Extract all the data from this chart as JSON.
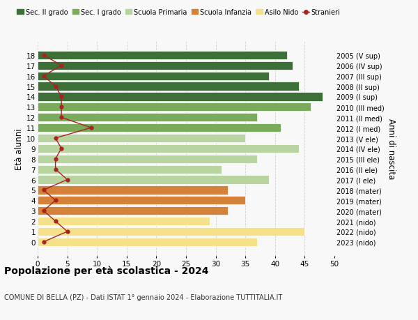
{
  "ages": [
    0,
    1,
    2,
    3,
    4,
    5,
    6,
    7,
    8,
    9,
    10,
    11,
    12,
    13,
    14,
    15,
    16,
    17,
    18
  ],
  "bar_values": [
    37,
    45,
    29,
    32,
    35,
    32,
    39,
    31,
    37,
    44,
    35,
    41,
    37,
    46,
    48,
    44,
    39,
    43,
    42
  ],
  "stranieri": [
    1,
    5,
    3,
    1,
    3,
    1,
    5,
    3,
    3,
    4,
    3,
    9,
    4,
    4,
    4,
    3,
    1,
    4,
    1
  ],
  "right_labels": [
    "2023 (nido)",
    "2022 (nido)",
    "2021 (nido)",
    "2020 (mater)",
    "2019 (mater)",
    "2018 (mater)",
    "2017 (I ele)",
    "2016 (II ele)",
    "2015 (III ele)",
    "2014 (IV ele)",
    "2013 (V ele)",
    "2012 (I med)",
    "2011 (II med)",
    "2010 (III med)",
    "2009 (I sup)",
    "2008 (II sup)",
    "2007 (III sup)",
    "2006 (IV sup)",
    "2005 (V sup)"
  ],
  "bar_colors": [
    "#f5e18a",
    "#f5e18a",
    "#f5e18a",
    "#d4823a",
    "#d4823a",
    "#d4823a",
    "#b8d4a0",
    "#b8d4a0",
    "#b8d4a0",
    "#b8d4a0",
    "#b8d4a0",
    "#7aaa5b",
    "#7aaa5b",
    "#7aaa5b",
    "#3d7038",
    "#3d7038",
    "#3d7038",
    "#3d7038",
    "#3d7038"
  ],
  "legend_labels": [
    "Sec. II grado",
    "Sec. I grado",
    "Scuola Primaria",
    "Scuola Infanzia",
    "Asilo Nido",
    "Stranieri"
  ],
  "legend_colors": [
    "#3d7038",
    "#7aaa5b",
    "#b8d4a0",
    "#d4823a",
    "#f5e18a",
    "#aa2222"
  ],
  "stranieri_color": "#aa2222",
  "title": "Popolazione per età scolastica - 2024",
  "subtitle": "COMUNE DI BELLA (PZ) - Dati ISTAT 1° gennaio 2024 - Elaborazione TUTTITALIA.IT",
  "ylabel": "Età alunni",
  "right_ylabel": "Anni di nascita",
  "xlim": [
    0,
    50
  ],
  "xticks": [
    0,
    5,
    10,
    15,
    20,
    25,
    30,
    35,
    40,
    45,
    50
  ],
  "bg_color": "#f8f8f8",
  "grid_color": "#cccccc"
}
